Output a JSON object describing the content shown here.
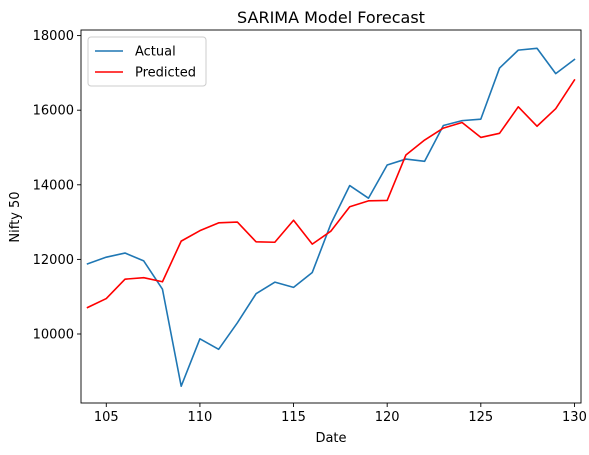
{
  "chart_data": {
    "type": "line",
    "title": "SARIMA Model Forecast",
    "xlabel": "Date",
    "ylabel": "Nifty 50",
    "xlim": [
      103.65,
      130.35
    ],
    "ylim": [
      8150,
      18150
    ],
    "xticks": [
      105,
      110,
      115,
      120,
      125,
      130
    ],
    "yticks": [
      10000,
      12000,
      14000,
      16000,
      18000
    ],
    "x": [
      104,
      105,
      106,
      107,
      108,
      109,
      110,
      111,
      112,
      113,
      114,
      115,
      116,
      117,
      118,
      119,
      120,
      121,
      122,
      123,
      124,
      125,
      126,
      127,
      128,
      129,
      130
    ],
    "series": [
      {
        "name": "Actual",
        "color": "#1f77b4",
        "values": [
          11880,
          12060,
          12170,
          11960,
          11200,
          8600,
          9870,
          9590,
          10300,
          11080,
          11390,
          11250,
          11650,
          12960,
          13980,
          13640,
          14530,
          14690,
          14630,
          15590,
          15720,
          15760,
          17130,
          17610,
          17660,
          16980,
          17360
        ]
      },
      {
        "name": "Predicted",
        "color": "#ff0000",
        "values": [
          10710,
          10950,
          11470,
          11510,
          11400,
          12490,
          12770,
          12980,
          13000,
          12470,
          12460,
          13050,
          12410,
          12760,
          13410,
          13570,
          13580,
          14800,
          15200,
          15520,
          15670,
          15270,
          15380,
          16090,
          15570,
          16040,
          16810
        ]
      }
    ],
    "legend": {
      "position": "top-left",
      "entries": [
        "Actual",
        "Predicted"
      ]
    }
  }
}
